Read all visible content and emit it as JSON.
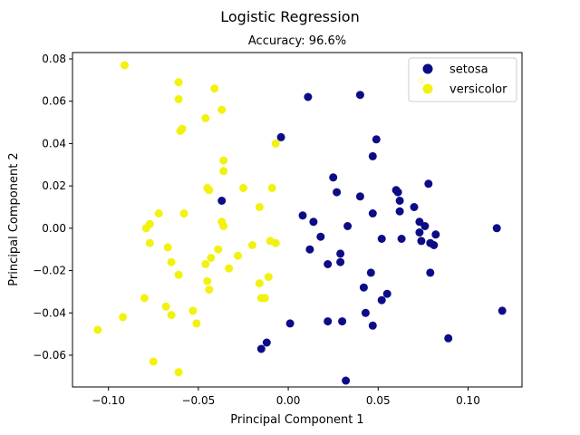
{
  "chart_data": {
    "type": "scatter",
    "title": "Logistic Regression",
    "subtitle": "Accuracy: 96.6%",
    "xlabel": "Principal Component 1",
    "ylabel": "Principal Component 2",
    "xlim": [
      -0.12,
      0.13
    ],
    "ylim": [
      -0.075,
      0.083
    ],
    "xticks": [
      -0.1,
      -0.05,
      0.0,
      0.05,
      0.1
    ],
    "xtick_labels": [
      "−0.10",
      "−0.05",
      "0.00",
      "0.05",
      "0.10"
    ],
    "yticks": [
      -0.06,
      -0.04,
      -0.02,
      0.0,
      0.02,
      0.04,
      0.06,
      0.08
    ],
    "ytick_labels": [
      "−0.06",
      "−0.04",
      "−0.02",
      "0.00",
      "0.02",
      "0.04",
      "0.06",
      "0.08"
    ],
    "grid": false,
    "legend_position": "top-right",
    "series": [
      {
        "name": "setosa",
        "color": "#0c0c87",
        "points": [
          [
            0.04,
            0.063
          ],
          [
            0.011,
            0.062
          ],
          [
            -0.004,
            0.043
          ],
          [
            0.049,
            0.042
          ],
          [
            0.047,
            0.034
          ],
          [
            0.078,
            0.021
          ],
          [
            0.025,
            0.024
          ],
          [
            0.027,
            0.017
          ],
          [
            0.04,
            0.015
          ],
          [
            0.06,
            0.018
          ],
          [
            0.061,
            0.017
          ],
          [
            0.062,
            0.013
          ],
          [
            0.07,
            0.01
          ],
          [
            0.062,
            0.008
          ],
          [
            0.047,
            0.007
          ],
          [
            0.008,
            0.006
          ],
          [
            0.014,
            0.003
          ],
          [
            0.073,
            0.003
          ],
          [
            0.076,
            0.001
          ],
          [
            0.033,
            0.001
          ],
          [
            0.116,
            0.0
          ],
          [
            0.073,
            -0.002
          ],
          [
            0.082,
            -0.003
          ],
          [
            0.018,
            -0.004
          ],
          [
            0.052,
            -0.005
          ],
          [
            0.063,
            -0.005
          ],
          [
            0.074,
            -0.006
          ],
          [
            0.079,
            -0.007
          ],
          [
            0.081,
            -0.008
          ],
          [
            0.012,
            -0.01
          ],
          [
            0.029,
            -0.012
          ],
          [
            0.029,
            -0.016
          ],
          [
            0.022,
            -0.017
          ],
          [
            0.046,
            -0.021
          ],
          [
            0.079,
            -0.021
          ],
          [
            0.042,
            -0.028
          ],
          [
            0.055,
            -0.031
          ],
          [
            0.052,
            -0.034
          ],
          [
            0.119,
            -0.039
          ],
          [
            0.043,
            -0.04
          ],
          [
            0.022,
            -0.044
          ],
          [
            0.03,
            -0.044
          ],
          [
            0.001,
            -0.045
          ],
          [
            0.047,
            -0.046
          ],
          [
            0.089,
            -0.052
          ],
          [
            -0.012,
            -0.054
          ],
          [
            -0.015,
            -0.057
          ],
          [
            0.032,
            -0.072
          ],
          [
            -0.037,
            0.013
          ]
        ]
      },
      {
        "name": "versicolor",
        "color": "#f2f20f",
        "points": [
          [
            -0.091,
            0.077
          ],
          [
            -0.061,
            0.069
          ],
          [
            0.074,
            0.07
          ],
          [
            -0.041,
            0.066
          ],
          [
            -0.061,
            0.061
          ],
          [
            -0.037,
            0.056
          ],
          [
            -0.046,
            0.052
          ],
          [
            -0.059,
            0.047
          ],
          [
            -0.06,
            0.046
          ],
          [
            -0.007,
            0.04
          ],
          [
            -0.036,
            0.032
          ],
          [
            -0.036,
            0.027
          ],
          [
            -0.025,
            0.019
          ],
          [
            -0.045,
            0.019
          ],
          [
            -0.044,
            0.018
          ],
          [
            -0.009,
            0.019
          ],
          [
            -0.016,
            0.01
          ],
          [
            -0.072,
            0.007
          ],
          [
            -0.058,
            0.007
          ],
          [
            -0.037,
            0.003
          ],
          [
            -0.077,
            0.002
          ],
          [
            -0.079,
            -0.0
          ],
          [
            -0.036,
            0.001
          ],
          [
            -0.077,
            -0.007
          ],
          [
            -0.01,
            -0.006
          ],
          [
            -0.007,
            -0.007
          ],
          [
            -0.02,
            -0.008
          ],
          [
            -0.067,
            -0.009
          ],
          [
            -0.039,
            -0.01
          ],
          [
            -0.028,
            -0.013
          ],
          [
            -0.043,
            -0.014
          ],
          [
            -0.065,
            -0.016
          ],
          [
            -0.046,
            -0.017
          ],
          [
            -0.033,
            -0.019
          ],
          [
            -0.061,
            -0.022
          ],
          [
            -0.011,
            -0.023
          ],
          [
            -0.045,
            -0.025
          ],
          [
            -0.016,
            -0.026
          ],
          [
            -0.044,
            -0.029
          ],
          [
            -0.08,
            -0.033
          ],
          [
            -0.015,
            -0.033
          ],
          [
            -0.013,
            -0.033
          ],
          [
            -0.068,
            -0.037
          ],
          [
            -0.053,
            -0.039
          ],
          [
            -0.065,
            -0.041
          ],
          [
            -0.092,
            -0.042
          ],
          [
            -0.051,
            -0.045
          ],
          [
            -0.106,
            -0.048
          ],
          [
            -0.075,
            -0.063
          ],
          [
            -0.061,
            -0.068
          ]
        ]
      }
    ]
  }
}
